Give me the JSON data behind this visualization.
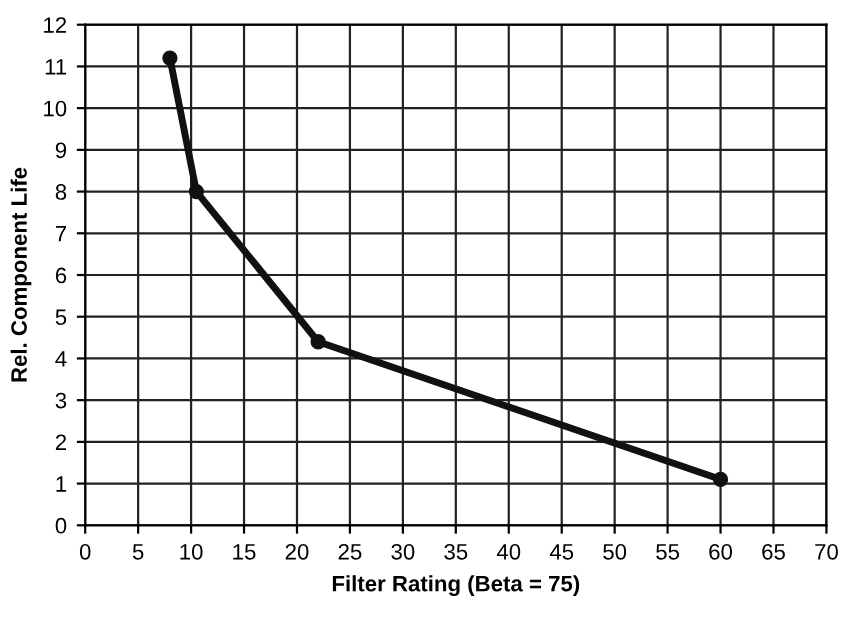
{
  "chart_data": {
    "type": "line",
    "xlabel": "Filter Rating (Beta = 75)",
    "ylabel": "Rel. Component Life",
    "x": [
      8,
      10.5,
      22,
      60
    ],
    "series": [
      {
        "color": "#111111",
        "values": [
          11.2,
          8,
          4.4,
          1.1
        ]
      }
    ],
    "xlim": [
      0,
      70
    ],
    "xticks": [
      0,
      5,
      10,
      15,
      20,
      25,
      30,
      35,
      40,
      45,
      50,
      55,
      60,
      65,
      70
    ],
    "ylim": [
      0,
      12
    ],
    "yticks": [
      0,
      1,
      2,
      3,
      4,
      5,
      6,
      7,
      8,
      9,
      10,
      11,
      12
    ],
    "grid": true,
    "marker": "circle",
    "line_style": "solid"
  }
}
